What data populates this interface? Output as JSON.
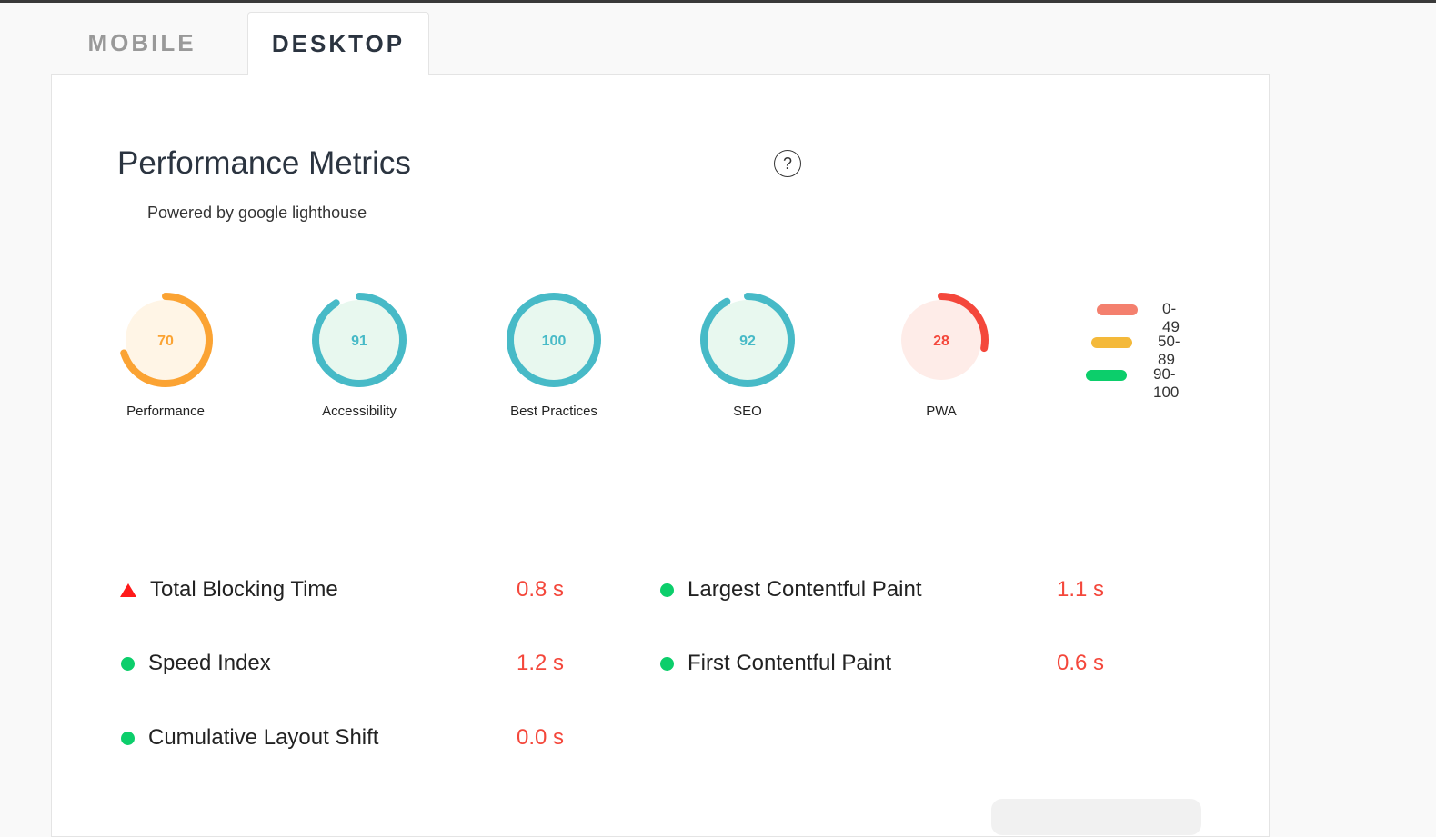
{
  "tabs": [
    {
      "label": "MOBILE",
      "active": false
    },
    {
      "label": "DESKTOP",
      "active": true
    }
  ],
  "title": "Performance Metrics",
  "help_icon": "question-circle-icon",
  "subtitle": "Powered by google lighthouse",
  "gauges": [
    {
      "label": "Performance",
      "score": 70,
      "color": "#fba333",
      "bg": "#fff5e6"
    },
    {
      "label": "Accessibility",
      "score": 91,
      "color": "#47bac7",
      "bg": "#e8f8ef"
    },
    {
      "label": "Best Practices",
      "score": 100,
      "color": "#47bac7",
      "bg": "#e8f8ef"
    },
    {
      "label": "SEO",
      "score": 92,
      "color": "#47bac7",
      "bg": "#e8f8ef"
    },
    {
      "label": "PWA",
      "score": 28,
      "color": "#f4473b",
      "bg": "#feece8"
    }
  ],
  "legend": [
    {
      "label": "0-49",
      "color": "#f4806e"
    },
    {
      "label": "50-89",
      "color": "#f4b93a"
    },
    {
      "label": "90-100",
      "color": "#0cce6b"
    }
  ],
  "metrics": [
    {
      "label": "Total Blocking Time",
      "value": "0.8 s",
      "status": "fail"
    },
    {
      "label": "Largest Contentful Paint",
      "value": "1.1 s",
      "status": "pass"
    },
    {
      "label": "Speed Index",
      "value": "1.2 s",
      "status": "pass"
    },
    {
      "label": "First Contentful Paint",
      "value": "0.6 s",
      "status": "pass"
    },
    {
      "label": "Cumulative Layout Shift",
      "value": "0.0 s",
      "status": "pass"
    }
  ]
}
